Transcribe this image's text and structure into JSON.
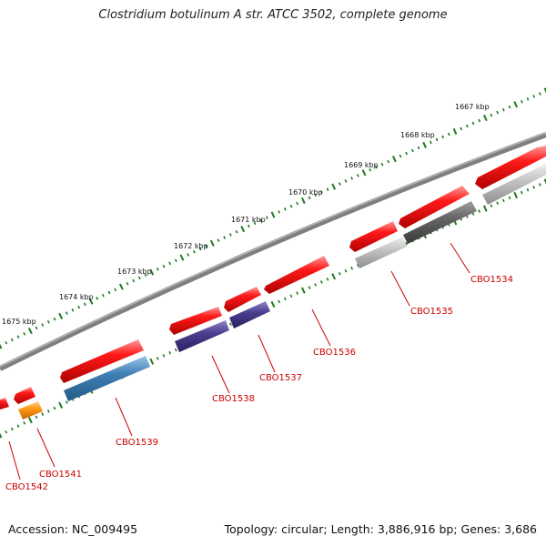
{
  "title": "Clostridium botulinum A str. ATCC 3502, complete genome",
  "footer": {
    "accession": "Accession: NC_009495",
    "topology": "Topology: circular; Length: 3,886,916 bp; Genes: 3,686"
  },
  "colors": {
    "backbone": "#8a8a8a",
    "tick": "#1f7a1f",
    "cds_forward": "#ff1a1a",
    "label": "#cc0000"
  },
  "kbp_labels": [
    "1667 kbp",
    "1668 kbp",
    "1669 kbp",
    "1670 kbp",
    "1671 kbp",
    "1672 kbp",
    "1673 kbp",
    "1674 kbp",
    "1675 kbp"
  ],
  "genes": [
    {
      "id": "CBO1534",
      "color": "#6a6a6a"
    },
    {
      "id": "CBO1535",
      "color": "#bdbdbd"
    },
    {
      "id": "CBO1536",
      "color": "#ff1a1a"
    },
    {
      "id": "CBO1537",
      "color": "#4b3f8f"
    },
    {
      "id": "CBO1538",
      "color": "#4b3f8f"
    },
    {
      "id": "CBO1539",
      "color": "#3f7fb5"
    },
    {
      "id": "CBO1541",
      "color": "#ff9a1a"
    },
    {
      "id": "CBO1542",
      "color": "#ff1a1a"
    }
  ]
}
